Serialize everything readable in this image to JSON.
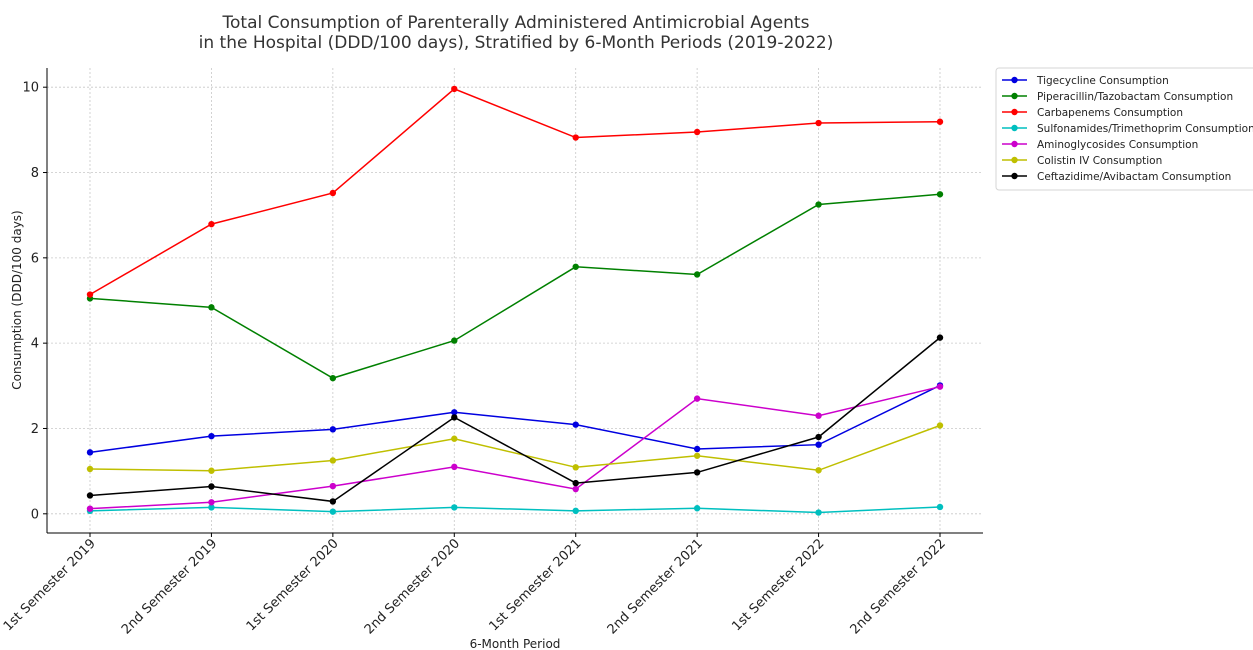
{
  "chart_data": {
    "type": "line",
    "title_lines": [
      "Total Consumption of Parenterally Administered Antimicrobial Agents",
      "in the Hospital (DDD/100 days), Stratified by 6-Month Periods (2019-2022)"
    ],
    "xlabel": "6-Month Period",
    "ylabel": "Consumption (DDD/100 days)",
    "categories": [
      "1st Semester 2019",
      "2nd Semester 2019",
      "1st Semester 2020",
      "2nd Semester 2020",
      "1st Semester 2021",
      "2nd Semester 2021",
      "1st Semester 2022",
      "2nd Semester 2022"
    ],
    "ylim": [
      -0.45,
      10.45
    ],
    "yticks": [
      0,
      2,
      4,
      6,
      8,
      10
    ],
    "grid": true,
    "legend_position": "outside-top-right",
    "series": [
      {
        "name": "Tigecycline Consumption",
        "color": "#0000e0",
        "values": [
          1.44,
          1.82,
          1.98,
          2.38,
          2.09,
          1.52,
          1.62,
          3.01
        ]
      },
      {
        "name": "Piperacillin/Tazobactam Consumption",
        "color": "#008000",
        "values": [
          5.05,
          4.84,
          3.18,
          4.06,
          5.79,
          5.61,
          7.25,
          7.49
        ]
      },
      {
        "name": "Carbapenems Consumption",
        "color": "#ff0000",
        "values": [
          5.14,
          6.79,
          7.52,
          9.96,
          8.82,
          8.95,
          9.16,
          9.19
        ]
      },
      {
        "name": "Sulfonamides/Trimethoprim Consumption",
        "color": "#00bfbf",
        "values": [
          0.07,
          0.15,
          0.05,
          0.15,
          0.07,
          0.13,
          0.03,
          0.16
        ]
      },
      {
        "name": "Aminoglycosides Consumption",
        "color": "#cc00cc",
        "values": [
          0.12,
          0.27,
          0.65,
          1.1,
          0.58,
          2.7,
          2.3,
          2.98
        ]
      },
      {
        "name": "Colistin IV Consumption",
        "color": "#bfbf00",
        "values": [
          1.05,
          1.01,
          1.25,
          1.76,
          1.09,
          1.36,
          1.02,
          2.07
        ]
      },
      {
        "name": "Ceftazidime/Avibactam Consumption",
        "color": "#000000",
        "values": [
          0.43,
          0.64,
          0.29,
          2.26,
          0.72,
          0.97,
          1.8,
          4.13
        ]
      }
    ]
  }
}
